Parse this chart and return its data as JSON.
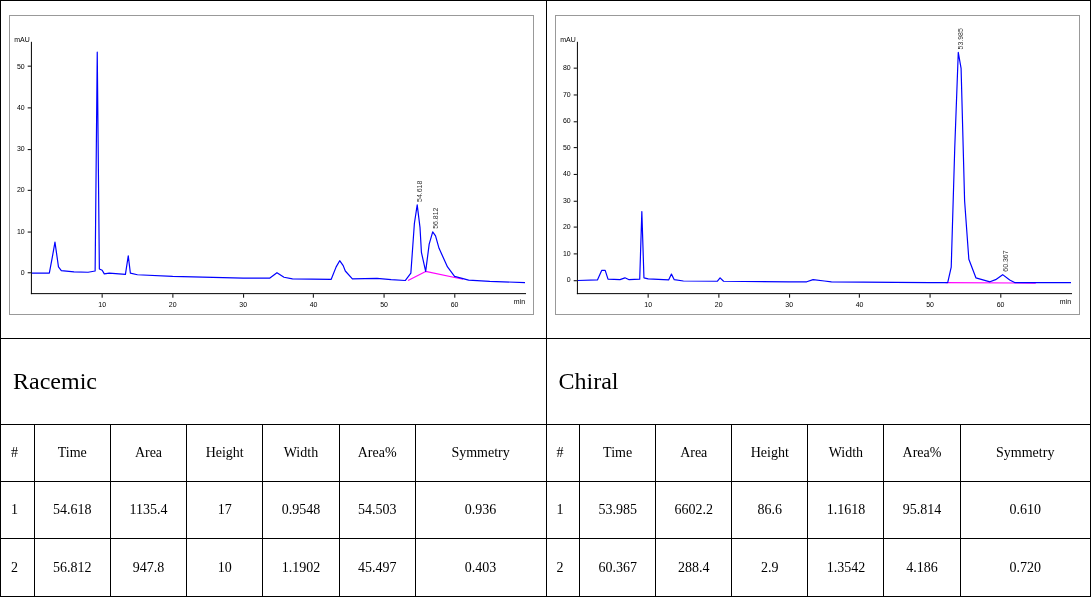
{
  "chart_data": [
    {
      "type": "line",
      "title": "Racemic",
      "xlabel": "min",
      "ylabel": "mAU",
      "xlim": [
        0,
        70
      ],
      "xticks": [
        10,
        20,
        30,
        40,
        50,
        60
      ],
      "ylim": [
        -5,
        56
      ],
      "yticks": [
        0,
        10,
        20,
        30,
        40,
        50
      ],
      "legend": false,
      "grid": false,
      "marker": "none",
      "series": [
        {
          "color": "#0000ff",
          "x": [
            0,
            2.5,
            2.9,
            3.3,
            3.8,
            4.2,
            6,
            8,
            9.0,
            9.3,
            9.6,
            10,
            10.3,
            11,
            13.3,
            13.7,
            14,
            15,
            20,
            30,
            33.8,
            34.8,
            35.8,
            37,
            42.5,
            43.2,
            43.7,
            44.2,
            44.5,
            45.5,
            49,
            51,
            53,
            53.8,
            54.3,
            54.7,
            55.1,
            55.3,
            55.9,
            56.4,
            56.9,
            57.3,
            57.8,
            59,
            60,
            62,
            65,
            70
          ],
          "values": [
            0,
            0,
            3.6,
            7.5,
            1.5,
            0.6,
            0.3,
            0.2,
            0.5,
            53.5,
            1,
            0.7,
            -0.2,
            0,
            -0.3,
            4.2,
            0,
            -0.4,
            -0.8,
            -1.2,
            -1.2,
            0.1,
            -1.0,
            -1.4,
            -1.5,
            1.5,
            3.0,
            1.8,
            0.5,
            -1.4,
            -1.3,
            -1.6,
            -1.8,
            0,
            12,
            16.5,
            11,
            5,
            0.4,
            7,
            10,
            9,
            6,
            1.5,
            -0.8,
            -1.7,
            -2.0,
            -2.3
          ]
        },
        {
          "color": "#ff00ff",
          "x": [
            53.4,
            55.9,
            61.2
          ],
          "values": [
            -1.8,
            0.4,
            -1.5
          ]
        }
      ],
      "annotations": [
        {
          "text": "54.618",
          "x": 54.7,
          "y": 16.5
        },
        {
          "text": "56.812",
          "x": 56.9,
          "y": 10
        },
        "#",
        "Time",
        "Area",
        "Height",
        "Width",
        "Area%",
        "Symmetry",
        "1",
        "54.618",
        "1135.4",
        "17",
        "0.9548",
        "54.503",
        "0.936",
        "2",
        "56.812",
        "947.8",
        "10",
        "1.1902",
        "45.497",
        "0.403"
      ]
    },
    {
      "type": "line",
      "title": "Chiral",
      "xlabel": "min",
      "ylabel": "mAU",
      "xlim": [
        0,
        70
      ],
      "xticks": [
        10,
        20,
        30,
        40,
        50,
        60
      ],
      "ylim": [
        -5,
        90
      ],
      "yticks": [
        0,
        10,
        20,
        30,
        40,
        50,
        60,
        70,
        80
      ],
      "legend": false,
      "grid": false,
      "marker": "none",
      "series": [
        {
          "color": "#0000ff",
          "x": [
            0,
            2.8,
            3.4,
            3.9,
            4.3,
            6,
            6.7,
            7.3,
            8.8,
            9.1,
            9.4,
            10,
            12.9,
            13.3,
            13.7,
            15,
            19.8,
            20.2,
            20.7,
            30,
            32.5,
            33.4,
            35,
            36,
            45,
            50,
            52.5,
            53.0,
            53.5,
            54.0,
            54.4,
            54.9,
            55.5,
            56.5,
            58.5,
            59.3,
            60.3,
            61.3,
            62,
            70
          ],
          "values": [
            0,
            0.2,
            3.8,
            3.8,
            0.5,
            0.3,
            1.0,
            0.3,
            0.5,
            26,
            1,
            0.6,
            0.2,
            2.4,
            0.3,
            -0.2,
            -0.3,
            1.0,
            -0.3,
            -0.5,
            -0.5,
            0.3,
            -0.2,
            -0.5,
            -0.7,
            -0.8,
            -0.8,
            5,
            50,
            86,
            80,
            30,
            8,
            1,
            -0.5,
            0.3,
            2.2,
            0.2,
            -0.8,
            -0.8
          ]
        },
        {
          "color": "#ff00ff",
          "x": [
            52.2,
            65
          ],
          "values": [
            -0.8,
            -1
          ]
        }
      ],
      "annotations": [
        {
          "text": "53.985",
          "x": 54.0,
          "y": 86
        },
        {
          "text": "60.367",
          "x": 60.3,
          "y": 2.2
        },
        "#",
        "Time",
        "Area",
        "Height",
        "Width",
        "Area%",
        "Symmetry",
        "1",
        "53.985",
        "6602.2",
        "86.6",
        "1.1618",
        "95.814",
        "0.610",
        "2",
        "60.367",
        "288.4",
        "2.9",
        "1.3542",
        "4.186",
        "0.720"
      ]
    }
  ]
}
